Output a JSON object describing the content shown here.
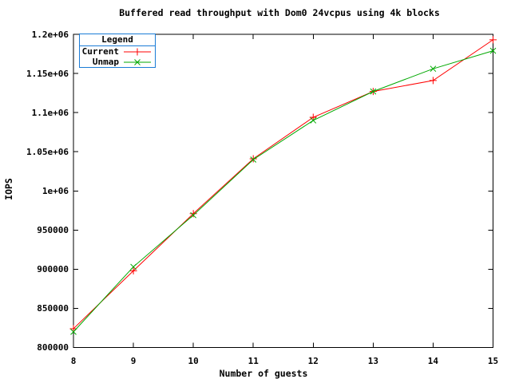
{
  "chart_data": {
    "type": "line",
    "title": "Buffered read throughput with Dom0 24vcpus using 4k blocks",
    "xlabel": "Number of guests",
    "ylabel": "IOPS",
    "x": [
      8,
      9,
      10,
      11,
      12,
      13,
      14,
      15
    ],
    "xlim": [
      8,
      15
    ],
    "ylim": [
      800000,
      1200000
    ],
    "xticks": [
      {
        "value": 8,
        "label": "8"
      },
      {
        "value": 9,
        "label": "9"
      },
      {
        "value": 10,
        "label": "10"
      },
      {
        "value": 11,
        "label": "11"
      },
      {
        "value": 12,
        "label": "12"
      },
      {
        "value": 13,
        "label": "13"
      },
      {
        "value": 14,
        "label": "14"
      },
      {
        "value": 15,
        "label": "15"
      }
    ],
    "yticks": [
      {
        "value": 800000,
        "label": "800000"
      },
      {
        "value": 850000,
        "label": "850000"
      },
      {
        "value": 900000,
        "label": "900000"
      },
      {
        "value": 950000,
        "label": "950000"
      },
      {
        "value": 1000000,
        "label": "1e+06"
      },
      {
        "value": 1050000,
        "label": "1.05e+06"
      },
      {
        "value": 1100000,
        "label": "1.1e+06"
      },
      {
        "value": 1150000,
        "label": "1.15e+06"
      },
      {
        "value": 1200000,
        "label": "1.2e+06"
      }
    ],
    "grid": false,
    "legend_title": "Legend",
    "legend_position": "top-left",
    "series": [
      {
        "name": "Current",
        "color": "#ff0000",
        "marker": "plus",
        "values": [
          824000,
          898000,
          971000,
          1041000,
          1094000,
          1127000,
          1141000,
          1193000
        ]
      },
      {
        "name": "Unmap",
        "color": "#00a800",
        "marker": "cross",
        "values": [
          820000,
          903000,
          969000,
          1040000,
          1090000,
          1127000,
          1156000,
          1179000
        ]
      }
    ],
    "colors": {
      "background": "#ffffff",
      "text": "#000000",
      "axis": "#000000",
      "legend_border": "#1b7cd6"
    }
  }
}
